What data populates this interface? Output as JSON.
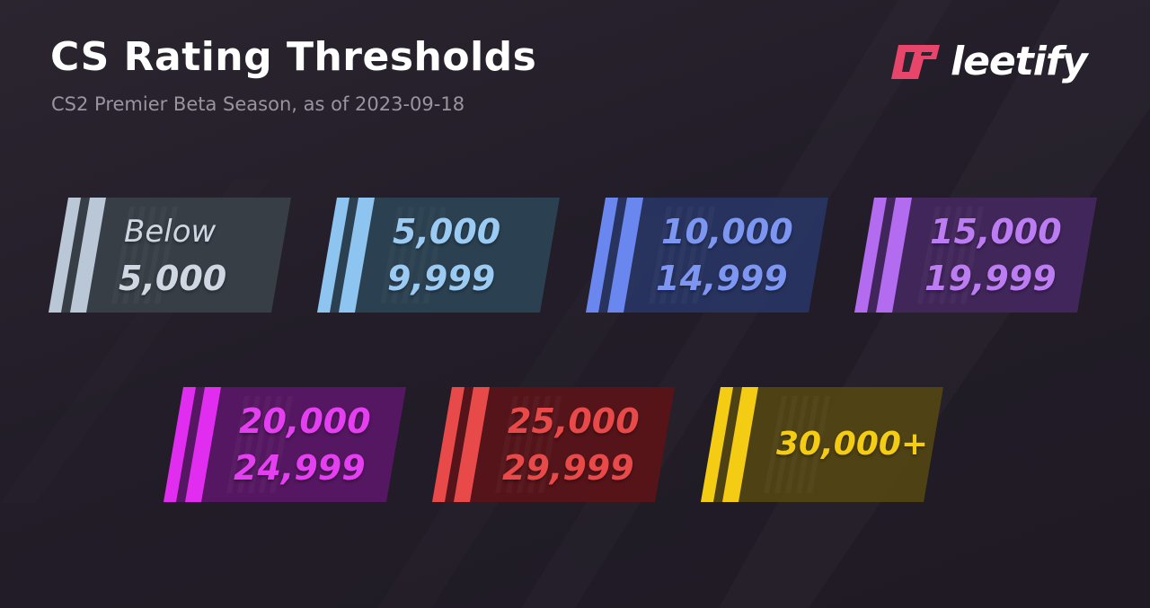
{
  "header": {
    "title": "CS Rating Thresholds",
    "subtitle": "CS2 Premier Beta Season, as of 2023-09-18"
  },
  "logo": {
    "text": "leetify",
    "icon": "leetify-logo-icon",
    "color": "#e8456b"
  },
  "tiers": [
    {
      "line1": "Below",
      "line2": "5,000",
      "color": "#b9c7d6",
      "bg": "#394149",
      "text_color": "#cfd8e2"
    },
    {
      "line1": "5,000",
      "line2": "9,999",
      "color": "#8dc4f0",
      "bg": "#2c4354",
      "text_color": "#9bcaf2"
    },
    {
      "line1": "10,000",
      "line2": "14,999",
      "color": "#6a87f0",
      "bg": "#283563",
      "text_color": "#7d96f2"
    },
    {
      "line1": "15,000",
      "line2": "19,999",
      "color": "#b36cf0",
      "bg": "#43275e",
      "text_color": "#bc7cf2"
    },
    {
      "line1": "20,000",
      "line2": "24,999",
      "color": "#e12df0",
      "bg": "#5a1766",
      "text_color": "#e43ff0"
    },
    {
      "line1": "25,000",
      "line2": "29,999",
      "color": "#e84a4a",
      "bg": "#5a1418",
      "text_color": "#e84a4a"
    },
    {
      "line1": "30,000+",
      "line2": "",
      "color": "#f5cc14",
      "bg": "#524512",
      "text_color": "#f5cc14"
    }
  ]
}
